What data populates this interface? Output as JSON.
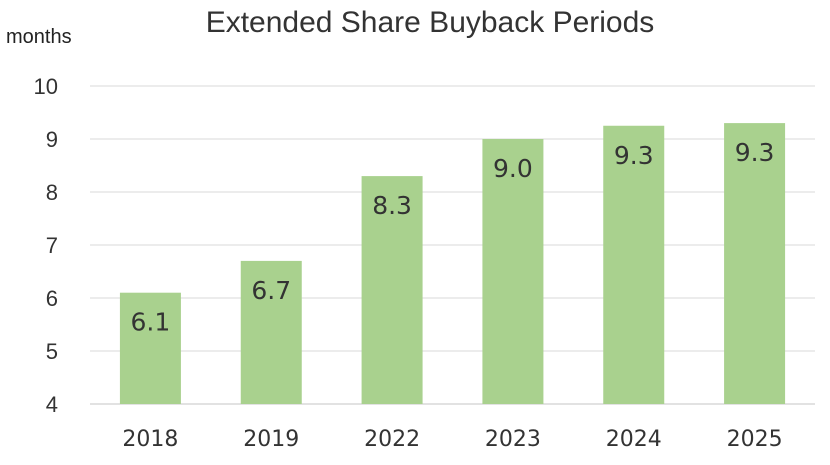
{
  "chart_data": {
    "type": "bar",
    "title": "Extended Share Buyback Periods",
    "ylabel": "months",
    "xlabel": "",
    "categories": [
      "2018",
      "2019",
      "2022",
      "2023",
      "2024",
      "2025"
    ],
    "values": [
      6.1,
      6.7,
      8.3,
      9.0,
      9.25,
      9.3
    ],
    "data_labels": [
      "6.1",
      "6.7",
      "8.3",
      "9.0",
      "9.3",
      "9.3"
    ],
    "ylim": [
      4,
      10
    ],
    "yticks": [
      "4",
      "5",
      "6",
      "7",
      "8",
      "9",
      "10"
    ],
    "grid": true,
    "legend": "none",
    "colors": {
      "bar": "#a9d18e",
      "grid": "#d9d9d9",
      "text": "#333333"
    }
  }
}
